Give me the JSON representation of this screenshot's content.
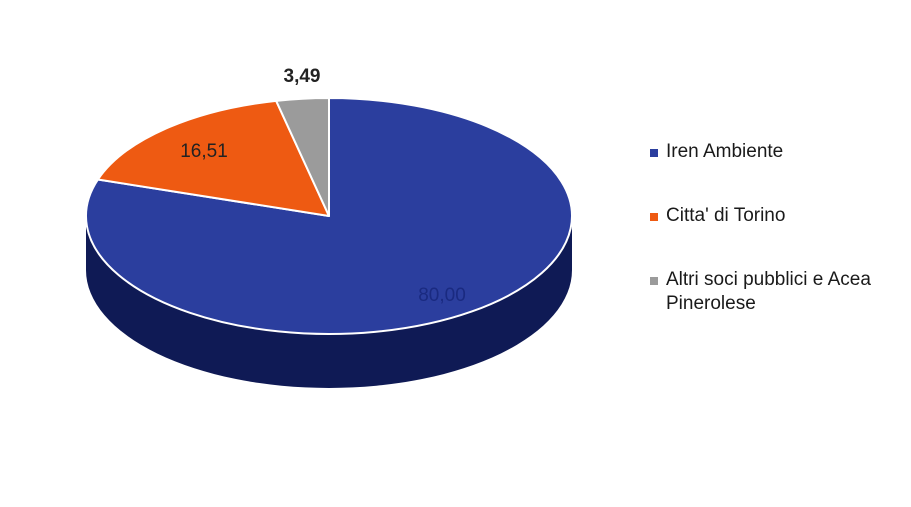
{
  "chart_data": {
    "type": "pie",
    "title": "",
    "slices": [
      {
        "label": "Iren Ambiente",
        "value": 80.0,
        "value_label": "80,00",
        "color": "#2B3E9E",
        "side_color": "#0F1A55"
      },
      {
        "label": "Citta' di Torino",
        "value": 16.51,
        "value_label": "16,51",
        "color": "#EE5A12",
        "side_color": "#9C3508"
      },
      {
        "label": "Altri soci pubblici e Acea Pinerolese",
        "value": 3.49,
        "value_label": "3,49",
        "color": "#9B9B9B",
        "side_color": "#5E5E5E"
      }
    ],
    "legend_position": "right"
  }
}
